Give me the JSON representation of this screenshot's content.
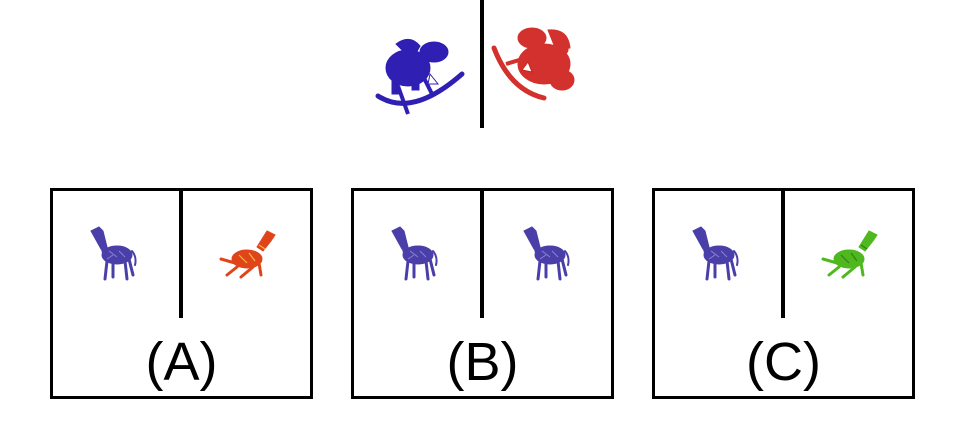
{
  "reference": {
    "left_icon": "rocking-horse-icon",
    "right_icon": "rocking-horse-icon",
    "left_color": "#2f1fb3",
    "right_color": "#d0201c"
  },
  "options": [
    {
      "label": "(A)",
      "left_icon": "giraffe-icon",
      "right_icon": "giraffe-icon",
      "left_color": "#4a3fa8",
      "right_color": "#e0451a"
    },
    {
      "label": "(B)",
      "left_icon": "giraffe-icon",
      "right_icon": "giraffe-icon",
      "left_color": "#4a3fa8",
      "right_color": "#4a3fa8"
    },
    {
      "label": "(C)",
      "left_icon": "giraffe-icon",
      "right_icon": "giraffe-icon",
      "left_color": "#4a3fa8",
      "right_color": "#4fb81e"
    }
  ]
}
